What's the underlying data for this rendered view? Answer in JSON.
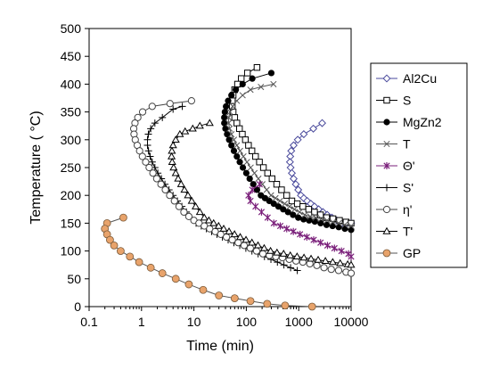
{
  "chart_data": {
    "type": "line",
    "xlabel": "Time (min)",
    "ylabel": "Temperature ( °C)",
    "x_scale": "log",
    "xlim": [
      0.1,
      10000
    ],
    "ylim": [
      0,
      500
    ],
    "x_ticks": [
      "0.1",
      "1",
      "10",
      "100",
      "1000",
      "10000"
    ],
    "y_ticks": [
      "0",
      "50",
      "100",
      "150",
      "200",
      "250",
      "300",
      "350",
      "400",
      "450",
      "500"
    ],
    "grid": false,
    "legend_position": "right",
    "series": [
      {
        "name": "Al2Cu",
        "color": "#4a4a9c",
        "marker": "diamond-open",
        "x": [
          2800,
          1900,
          1250,
          960,
          800,
          720,
          690,
          680,
          700,
          740,
          800,
          880,
          980,
          1100,
          1250,
          1450,
          1700,
          2000,
          2400,
          2900,
          3500,
          4300,
          5300,
          6600,
          8200,
          10000
        ],
        "y": [
          330,
          320,
          310,
          300,
          290,
          280,
          270,
          260,
          250,
          240,
          230,
          220,
          210,
          200,
          195,
          190,
          185,
          180,
          175,
          170,
          165,
          160,
          155,
          150,
          150,
          150
        ]
      },
      {
        "name": "S",
        "color": "#000000",
        "marker": "square-open",
        "x": [
          160,
          105,
          80,
          68,
          60,
          56,
          54,
          54,
          56,
          60,
          66,
          74,
          84,
          96,
          110,
          128,
          150,
          178,
          212,
          255,
          310,
          380,
          470,
          590,
          740,
          940,
          1200,
          1550,
          2000,
          2600,
          3400,
          4500,
          6000,
          8000,
          10000
        ],
        "y": [
          430,
          420,
          410,
          400,
          390,
          380,
          370,
          360,
          350,
          340,
          330,
          320,
          310,
          300,
          290,
          280,
          270,
          260,
          250,
          240,
          230,
          220,
          210,
          200,
          190,
          185,
          180,
          175,
          170,
          165,
          160,
          158,
          155,
          152,
          150
        ]
      },
      {
        "name": "MgZn2",
        "color": "#000000",
        "marker": "circle-filled",
        "x": [
          300,
          130,
          85,
          63,
          52,
          45,
          41,
          39,
          38,
          38,
          40,
          43,
          47,
          52,
          58,
          66,
          75,
          86,
          100,
          116,
          136,
          160,
          190,
          228,
          275,
          335,
          410,
          505,
          625,
          780,
          980,
          1240,
          1580,
          2030,
          2620,
          3400,
          4430,
          5800,
          7600,
          10000
        ],
        "y": [
          420,
          410,
          400,
          390,
          380,
          370,
          360,
          350,
          340,
          330,
          320,
          310,
          300,
          290,
          280,
          270,
          260,
          250,
          240,
          230,
          220,
          210,
          200,
          195,
          190,
          185,
          180,
          175,
          170,
          165,
          160,
          157,
          155,
          153,
          150,
          147,
          145,
          143,
          140,
          138
        ]
      },
      {
        "name": "T",
        "color": "#555555",
        "marker": "x",
        "x": [
          330,
          190,
          120,
          85,
          66,
          55,
          49,
          46,
          46,
          48,
          52,
          58,
          66,
          76,
          88,
          103,
          121,
          143,
          170,
          203,
          245,
          296,
          360,
          440,
          540,
          670,
          830,
          1040,
          1310,
          1660,
          2110,
          2700,
          3470,
          4480,
          5800,
          7550,
          10000
        ],
        "y": [
          400,
          395,
          390,
          380,
          370,
          360,
          350,
          340,
          330,
          320,
          310,
          300,
          290,
          280,
          270,
          260,
          250,
          240,
          230,
          220,
          210,
          200,
          195,
          190,
          185,
          180,
          175,
          170,
          165,
          162,
          160,
          158,
          155,
          152,
          150,
          147,
          145
        ]
      },
      {
        "name": "Θ'",
        "color": "#7a1f7a",
        "marker": "star",
        "x": [
          180,
          130,
          110,
          120,
          150,
          195,
          255,
          335,
          445,
          590,
          790,
          1060,
          1430,
          1930,
          2610,
          3540,
          4810,
          6550,
          8930,
          10000
        ],
        "y": [
          220,
          210,
          200,
          190,
          180,
          170,
          160,
          150,
          145,
          140,
          135,
          130,
          125,
          120,
          115,
          110,
          105,
          100,
          95,
          90
        ]
      },
      {
        "name": "S'",
        "color": "#000000",
        "marker": "plus",
        "x": [
          6,
          4,
          2.5,
          1.8,
          1.5,
          1.35,
          1.3,
          1.3,
          1.36,
          1.46,
          1.6,
          1.8,
          2.05,
          2.4,
          2.8,
          3.35,
          4.0,
          4.85,
          5.9,
          7.2,
          8.9,
          11,
          13.8,
          17.3,
          21.8,
          27.5,
          35,
          45,
          58,
          75,
          98,
          128,
          168,
          222,
          295,
          392,
          522,
          700,
          940
        ],
        "y": [
          360,
          355,
          340,
          330,
          320,
          310,
          300,
          290,
          280,
          270,
          260,
          250,
          240,
          230,
          220,
          210,
          200,
          190,
          180,
          170,
          160,
          150,
          145,
          140,
          135,
          130,
          125,
          120,
          115,
          110,
          105,
          100,
          95,
          90,
          85,
          80,
          75,
          70,
          65
        ]
      },
      {
        "name": "η'",
        "color": "#444444",
        "marker": "circle-open",
        "x": [
          9,
          3.5,
          1.6,
          1.05,
          0.85,
          0.75,
          0.71,
          0.72,
          0.76,
          0.83,
          0.92,
          1.04,
          1.2,
          1.4,
          1.65,
          1.95,
          2.35,
          2.85,
          3.45,
          4.25,
          5.2,
          6.45,
          8.0,
          10,
          12.5,
          15.8,
          20,
          25.5,
          32.5,
          41.8,
          54,
          70,
          91,
          119,
          157,
          207,
          275,
          366,
          490,
          660,
          890,
          1200,
          1630,
          2220,
          3040,
          4180,
          5770,
          8000,
          10000
        ],
        "y": [
          370,
          365,
          360,
          350,
          340,
          330,
          320,
          310,
          300,
          290,
          280,
          270,
          260,
          250,
          240,
          230,
          220,
          210,
          200,
          190,
          180,
          170,
          162,
          155,
          150,
          145,
          140,
          135,
          130,
          125,
          120,
          115,
          110,
          105,
          100,
          95,
          92,
          90,
          88,
          85,
          82,
          80,
          77,
          74,
          70,
          67,
          65,
          62,
          60
        ]
      },
      {
        "name": "T'",
        "color": "#000000",
        "marker": "triangle-open",
        "x": [
          20,
          13,
          9.5,
          6.8,
          5.4,
          4.5,
          4.0,
          3.8,
          3.75,
          3.85,
          4.1,
          4.5,
          5.0,
          5.7,
          6.6,
          7.7,
          9.1,
          10.8,
          13,
          15.8,
          19.3,
          23.8,
          29.6,
          37,
          46.8,
          59.6,
          76.4,
          98.6,
          128,
          167,
          219,
          290,
          385,
          515,
          690,
          930,
          1260,
          1720,
          2350,
          3230,
          4460,
          6180,
          8600,
          10000
        ],
        "y": [
          330,
          325,
          320,
          315,
          310,
          300,
          290,
          280,
          270,
          260,
          250,
          240,
          230,
          220,
          210,
          200,
          190,
          180,
          170,
          160,
          155,
          150,
          145,
          140,
          135,
          130,
          125,
          120,
          115,
          110,
          105,
          100,
          97,
          95,
          92,
          90,
          88,
          86,
          84,
          82,
          80,
          78,
          76,
          75
        ]
      },
      {
        "name": "GP",
        "color": "#e8a36b",
        "marker": "circle-orange",
        "x": [
          0.45,
          0.22,
          0.2,
          0.22,
          0.25,
          0.3,
          0.4,
          0.6,
          0.9,
          1.5,
          2.5,
          4.5,
          8,
          15,
          30,
          60,
          120,
          250,
          550,
          1800
        ],
        "y": [
          160,
          150,
          140,
          130,
          120,
          110,
          100,
          90,
          80,
          70,
          60,
          50,
          40,
          30,
          20,
          15,
          10,
          5,
          2,
          0
        ]
      }
    ]
  }
}
